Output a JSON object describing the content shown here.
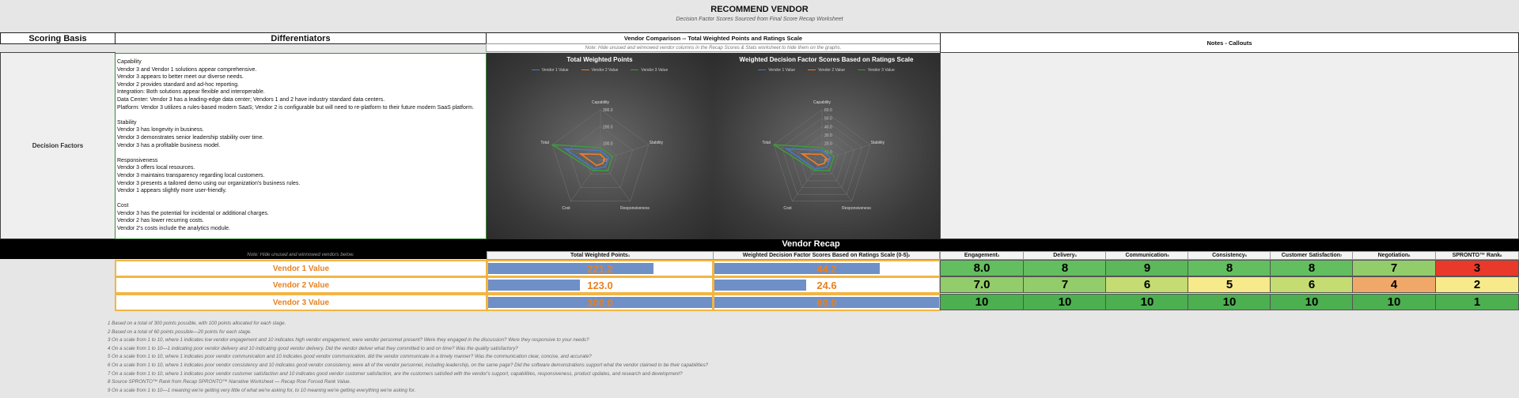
{
  "page": {
    "title": "RECOMMEND VENDOR",
    "subtitle": "Decision Factor Scores Sourced from Final Score Recap Worksheet"
  },
  "headers": {
    "scoring_basis": "Scoring Basis",
    "differentiators": "Differentiators",
    "comparison": "Vendor Comparison -- Total Weighted Points and Ratings Scale",
    "comparison_note": "Note: Hide unused and winnowed vendor columns in the Recap Scores & Stats worksheet to hide them on the graphs.",
    "notes": "Notes - Callouts"
  },
  "decision_factors_label": "Decision Factors",
  "differentiators_text": "Capability\nVendor 3 and Vendor 1 solutions appear comprehensive.\nVendor 3 appears to better meet our diverse needs.\nVendor 2 provides standard and ad-hoc reporting.\nIntegration: Both solutions appear flexible and interoperable.\nData Center: Vendor 3 has a leading-edge data center; Vendors 1 and 2 have industry standard data centers.\nPlatform: Vendor 3 utilizes a rules-based modern SaaS; Vendor 2 is configurable but will need to re-platform to their future modern SaaS platform.\n\nStability\nVendor 3 has longevity in business.\nVendor 3 demonstrates senior leadership stability over time.\nVendor 3 has a profitable business model.\n\nResponsiveness\nVendor 3 offers local resources.\nVendor 3 maintains transparency regarding local customers.\nVendor 3 presents a tailored demo using our organization's business rules.\nVendor 1 appears slightly more user-friendly.\n\nCost\nVendor 3 has the potential for incidental or additional charges.\nVendor 2 has lower recurring costs.\nVendor 2's costs include the analytics module.",
  "chart_data": [
    {
      "type": "radar",
      "title": "Total Weighted Points",
      "axes": [
        "Capability",
        "Stability",
        "Responsiveness",
        "Cost",
        "Total"
      ],
      "ticks": [
        "300.0",
        "200.0",
        "100.0",
        "0.0"
      ],
      "rmax": 300,
      "series": [
        {
          "name": "Vendor 1 Value",
          "color": "#4a79c4",
          "values": [
            58,
            52,
            48,
            63,
            221.2
          ]
        },
        {
          "name": "Vendor 2 Value",
          "color": "#f07f2a",
          "values": [
            35,
            28,
            22,
            38,
            123.0
          ]
        },
        {
          "name": "Vendor 3 Value",
          "color": "#3e9a3e",
          "values": [
            75,
            75,
            75,
            75,
            300.0
          ]
        }
      ]
    },
    {
      "type": "radar",
      "title": "Weighted Decision Factor Scores Based on Ratings Scale",
      "axes": [
        "Capability",
        "Stability",
        "Responsiveness",
        "Cost",
        "Total"
      ],
      "ticks": [
        "60.0",
        "50.0",
        "40.0",
        "30.0",
        "20.0",
        "10.0",
        "0.0"
      ],
      "rmax": 60,
      "series": [
        {
          "name": "Vendor 1 Value",
          "color": "#4a79c4",
          "values": [
            12,
            11,
            10,
            13,
            44.2
          ]
        },
        {
          "name": "Vendor 2 Value",
          "color": "#f07f2a",
          "values": [
            7,
            6,
            4.5,
            7,
            24.6
          ]
        },
        {
          "name": "Vendor 3 Value",
          "color": "#3e9a3e",
          "values": [
            15,
            15,
            15,
            15,
            60.0
          ]
        }
      ]
    }
  ],
  "recap": {
    "title": "Vendor Recap",
    "note": "Note: Hide unused and winnowed vendors below.",
    "columns": [
      {
        "label": "Total Weighted Points",
        "sup": "1"
      },
      {
        "label": "Weighted Decision Factor Scores Based on Ratings Scale (0-5)",
        "sup": "2"
      },
      {
        "label": "Engagement",
        "sup": "3"
      },
      {
        "label": "Delivery",
        "sup": "4"
      },
      {
        "label": "Communication",
        "sup": "5"
      },
      {
        "label": "Consistency",
        "sup": "6"
      },
      {
        "label": "Customer Satisfaction",
        "sup": "7"
      },
      {
        "label": "Negotiation",
        "sup": "8"
      },
      {
        "label": "SPRONTO™ Rank",
        "sup": "8"
      }
    ],
    "vendors": [
      {
        "name": "Vendor 1 Value",
        "total": "221.2",
        "total_frac": 0.737,
        "weighted": "44.2",
        "weighted_frac": 0.737,
        "scores": [
          "8.0",
          "8",
          "9",
          "8",
          "8",
          "7",
          "3"
        ],
        "colors": [
          "#63be5f",
          "#63be5f",
          "#5cb85a",
          "#63be5f",
          "#63be5f",
          "#93cc6a",
          "#e8392a"
        ]
      },
      {
        "name": "Vendor 2 Value",
        "total": "123.0",
        "total_frac": 0.41,
        "weighted": "24.6",
        "weighted_frac": 0.41,
        "scores": [
          "7.0",
          "7",
          "6",
          "5",
          "6",
          "4",
          "2"
        ],
        "colors": [
          "#93cc6a",
          "#93cc6a",
          "#c4dc72",
          "#f7ea8a",
          "#c4dc72",
          "#f0a868",
          "#f7ea8a"
        ]
      },
      {
        "name": "Vendor 3 Value",
        "total": "300.0",
        "total_frac": 1.0,
        "weighted": "60.0",
        "weighted_frac": 1.0,
        "scores": [
          "10",
          "10",
          "10",
          "10",
          "10",
          "10",
          "1"
        ],
        "colors": [
          "#4caf50",
          "#4caf50",
          "#4caf50",
          "#4caf50",
          "#4caf50",
          "#4caf50",
          "#4caf50"
        ]
      }
    ]
  },
  "footnotes": [
    "1  Based on a total of 300 points possible, with 100 points allocated for each stage.",
    "2  Based on a total of 60 points possible—20 points for each stage.",
    "3  On a scale from 1 to 10, where 1 indicates low vendor engagement and 10 indicates high vendor engagement, were vendor personnel present? Were they engaged in the discussion? Were they responsive to your needs?",
    "4  On a scale from 1 to 10—1 indicating poor vendor delivery and 10 indicating good vendor delivery. Did the vendor deliver what they committed to and on time? Was the quality satisfactory?",
    "5  On a scale from 1 to 10, where 1 indicates poor vendor communication and 10 indicates good vendor communication, did the vendor communicate in a timely manner? Was the communication clear, concise, and accurate?",
    "6  On a scale from 1 to 10, where 1 indicates poor vendor consistency and 10 indicates good vendor consistency, were all of the vendor personnel, including leadership, on the same page? Did the software demonstrations support what the vendor claimed to be their capabilities?",
    "7  On a scale from 1 to 10, where 1 indicates poor vendor customer satisfaction and 10 indicates good vendor customer satisfaction, are the customers satisfied with the vendor's support, capabilities, responsiveness, product updates, and research and development?",
    "8  Source SPRONTO™ Rank from Recap SPRONTO™ Narrative Worksheet — Recap Row Forced Rank Value.",
    "9  On a scale from 1 to 10—1 meaning we're getting very little of what we're asking for, to 10 meaning we're getting everything we're asking for."
  ]
}
